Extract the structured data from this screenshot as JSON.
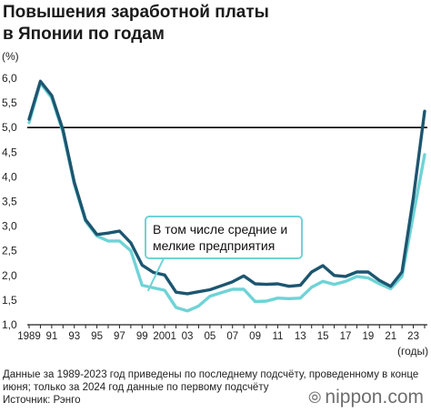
{
  "title": {
    "line1": "Повышения заработной платы",
    "line2": "в Японии по годам"
  },
  "footer": {
    "line1": "Данные за 1989-2023 год приведены по последнему подсчёту, проведенному в конце",
    "line2": "июня; только за 2024 год данные по первому подсчёту",
    "line3": "Источник: Рэнго"
  },
  "logo": {
    "text": "nippon.com",
    "icon": "nippon-mark-icon"
  },
  "colors": {
    "dark": "#1d5670",
    "light": "#6fd3d6",
    "ref_line": "#000000",
    "callout_border": "#6fd3d6"
  },
  "chart_data": {
    "type": "line",
    "y_unit_label": "(%)",
    "x_unit_label": "(годы)",
    "ylim": [
      1.0,
      6.0
    ],
    "yticks": [
      "6,0",
      "5,5",
      "5,0",
      "4,5",
      "4,0",
      "3,5",
      "3,0",
      "2,5",
      "2,0",
      "1,5",
      "1,0"
    ],
    "ytick_values": [
      6.0,
      5.5,
      5.0,
      4.5,
      4.0,
      3.5,
      3.0,
      2.5,
      2.0,
      1.5,
      1.0
    ],
    "xlim": [
      1989,
      2024
    ],
    "xtick_labels": [
      "1989",
      "91",
      "93",
      "95",
      "97",
      "99",
      "2001",
      "03",
      "05",
      "07",
      "09",
      "11",
      "13",
      "15",
      "17",
      "19",
      "21",
      "23"
    ],
    "xtick_years": [
      1989,
      1991,
      1993,
      1995,
      1997,
      1999,
      2001,
      2003,
      2005,
      2007,
      2009,
      2011,
      2013,
      2015,
      2017,
      2019,
      2021,
      2023
    ],
    "reference_line": 5.0,
    "series": [
      {
        "key": "all",
        "x": [
          1989,
          1990,
          1991,
          1992,
          1993,
          1994,
          1995,
          1996,
          1997,
          1998,
          1999,
          2000,
          2001,
          2002,
          2003,
          2004,
          2005,
          2006,
          2007,
          2008,
          2009,
          2010,
          2011,
          2012,
          2013,
          2014,
          2015,
          2016,
          2017,
          2018,
          2019,
          2020,
          2021,
          2022,
          2023,
          2024
        ],
        "values": [
          5.17,
          5.94,
          5.65,
          4.95,
          3.89,
          3.13,
          2.83,
          2.86,
          2.9,
          2.66,
          2.21,
          2.06,
          2.01,
          1.66,
          1.63,
          1.67,
          1.71,
          1.79,
          1.87,
          1.99,
          1.83,
          1.82,
          1.83,
          1.78,
          1.8,
          2.07,
          2.2,
          2.0,
          1.98,
          2.07,
          2.07,
          1.9,
          1.78,
          2.07,
          3.58,
          5.33
        ]
      },
      {
        "key": "small",
        "name": "В том числе средние и мелкие предприятия",
        "x": [
          1989,
          1990,
          1991,
          1992,
          1993,
          1994,
          1995,
          1996,
          1997,
          1998,
          1999,
          2000,
          2001,
          2002,
          2003,
          2004,
          2005,
          2006,
          2007,
          2008,
          2009,
          2010,
          2011,
          2012,
          2013,
          2014,
          2015,
          2016,
          2017,
          2018,
          2019,
          2020,
          2021,
          2022,
          2023,
          2024
        ],
        "values": [
          5.1,
          5.9,
          5.6,
          4.9,
          3.85,
          3.1,
          2.8,
          2.7,
          2.7,
          2.5,
          1.8,
          1.75,
          1.7,
          1.35,
          1.28,
          1.38,
          1.58,
          1.65,
          1.72,
          1.72,
          1.47,
          1.48,
          1.54,
          1.53,
          1.54,
          1.76,
          1.88,
          1.82,
          1.88,
          1.98,
          1.95,
          1.83,
          1.73,
          1.98,
          3.23,
          4.45
        ]
      }
    ],
    "callout": {
      "line1": "В том числе средние и",
      "line2": "мелкие предприятия",
      "pointer_year": 2000,
      "pointer_value": 1.72
    }
  }
}
